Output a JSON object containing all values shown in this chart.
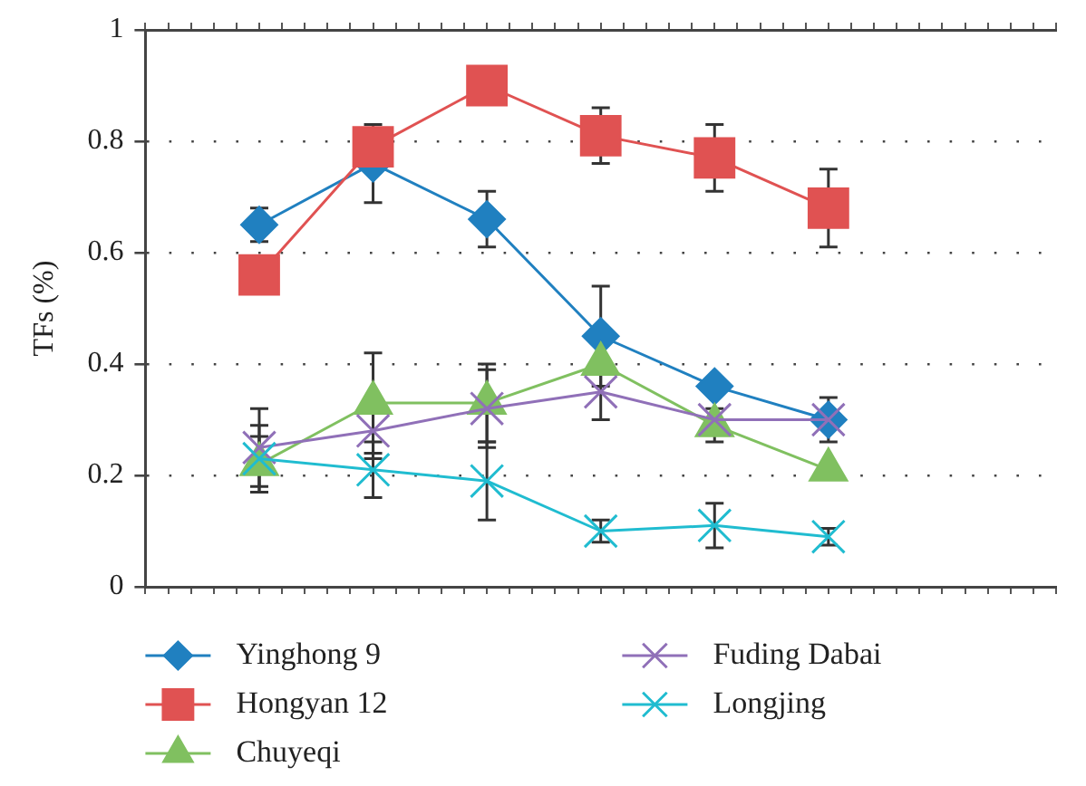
{
  "chart_data": {
    "type": "line",
    "ylabel": "TFs (%)",
    "categories": [
      null,
      null,
      null,
      null,
      null,
      null
    ],
    "series": [
      {
        "name": "Yinghong 9",
        "color": "#2080c0",
        "marker": "diamond",
        "values": [
          0.65,
          0.76,
          0.66,
          0.45,
          0.36,
          0.3
        ],
        "errors": [
          0.03,
          0.07,
          0.05,
          0.09,
          null,
          0.04
        ]
      },
      {
        "name": "Hongyan 12",
        "color": "#e05252",
        "marker": "square",
        "values": [
          0.56,
          0.79,
          0.9,
          0.81,
          0.77,
          0.68
        ],
        "errors": [
          null,
          null,
          null,
          0.05,
          0.06,
          0.07
        ]
      },
      {
        "name": "Chuyeqi",
        "color": "#80c060",
        "marker": "triangle",
        "values": [
          0.22,
          0.33,
          0.33,
          0.4,
          0.29,
          0.21
        ],
        "errors": [
          0.05,
          0.09,
          0.07,
          null,
          0.03,
          null
        ]
      },
      {
        "name": "Fuding Dabai",
        "color": "#9070b8",
        "marker": "cross",
        "values": [
          0.25,
          0.28,
          0.32,
          0.35,
          0.3,
          0.3
        ],
        "errors": [
          0.07,
          0.05,
          0.07,
          0.05,
          null,
          null
        ]
      },
      {
        "name": "Longjing",
        "color": "#20bcd0",
        "marker": "cross",
        "values": [
          0.23,
          0.21,
          0.19,
          0.1,
          0.11,
          0.09
        ],
        "errors": [
          0.06,
          0.05,
          0.07,
          0.02,
          0.04,
          0.015
        ]
      }
    ],
    "ylim": [
      0,
      1
    ],
    "yticks": [
      0,
      0.2,
      0.4,
      0.6,
      0.8,
      1
    ],
    "grid": "y",
    "legend": "bottom",
    "tick_labels": "y",
    "line_style": "solid"
  }
}
